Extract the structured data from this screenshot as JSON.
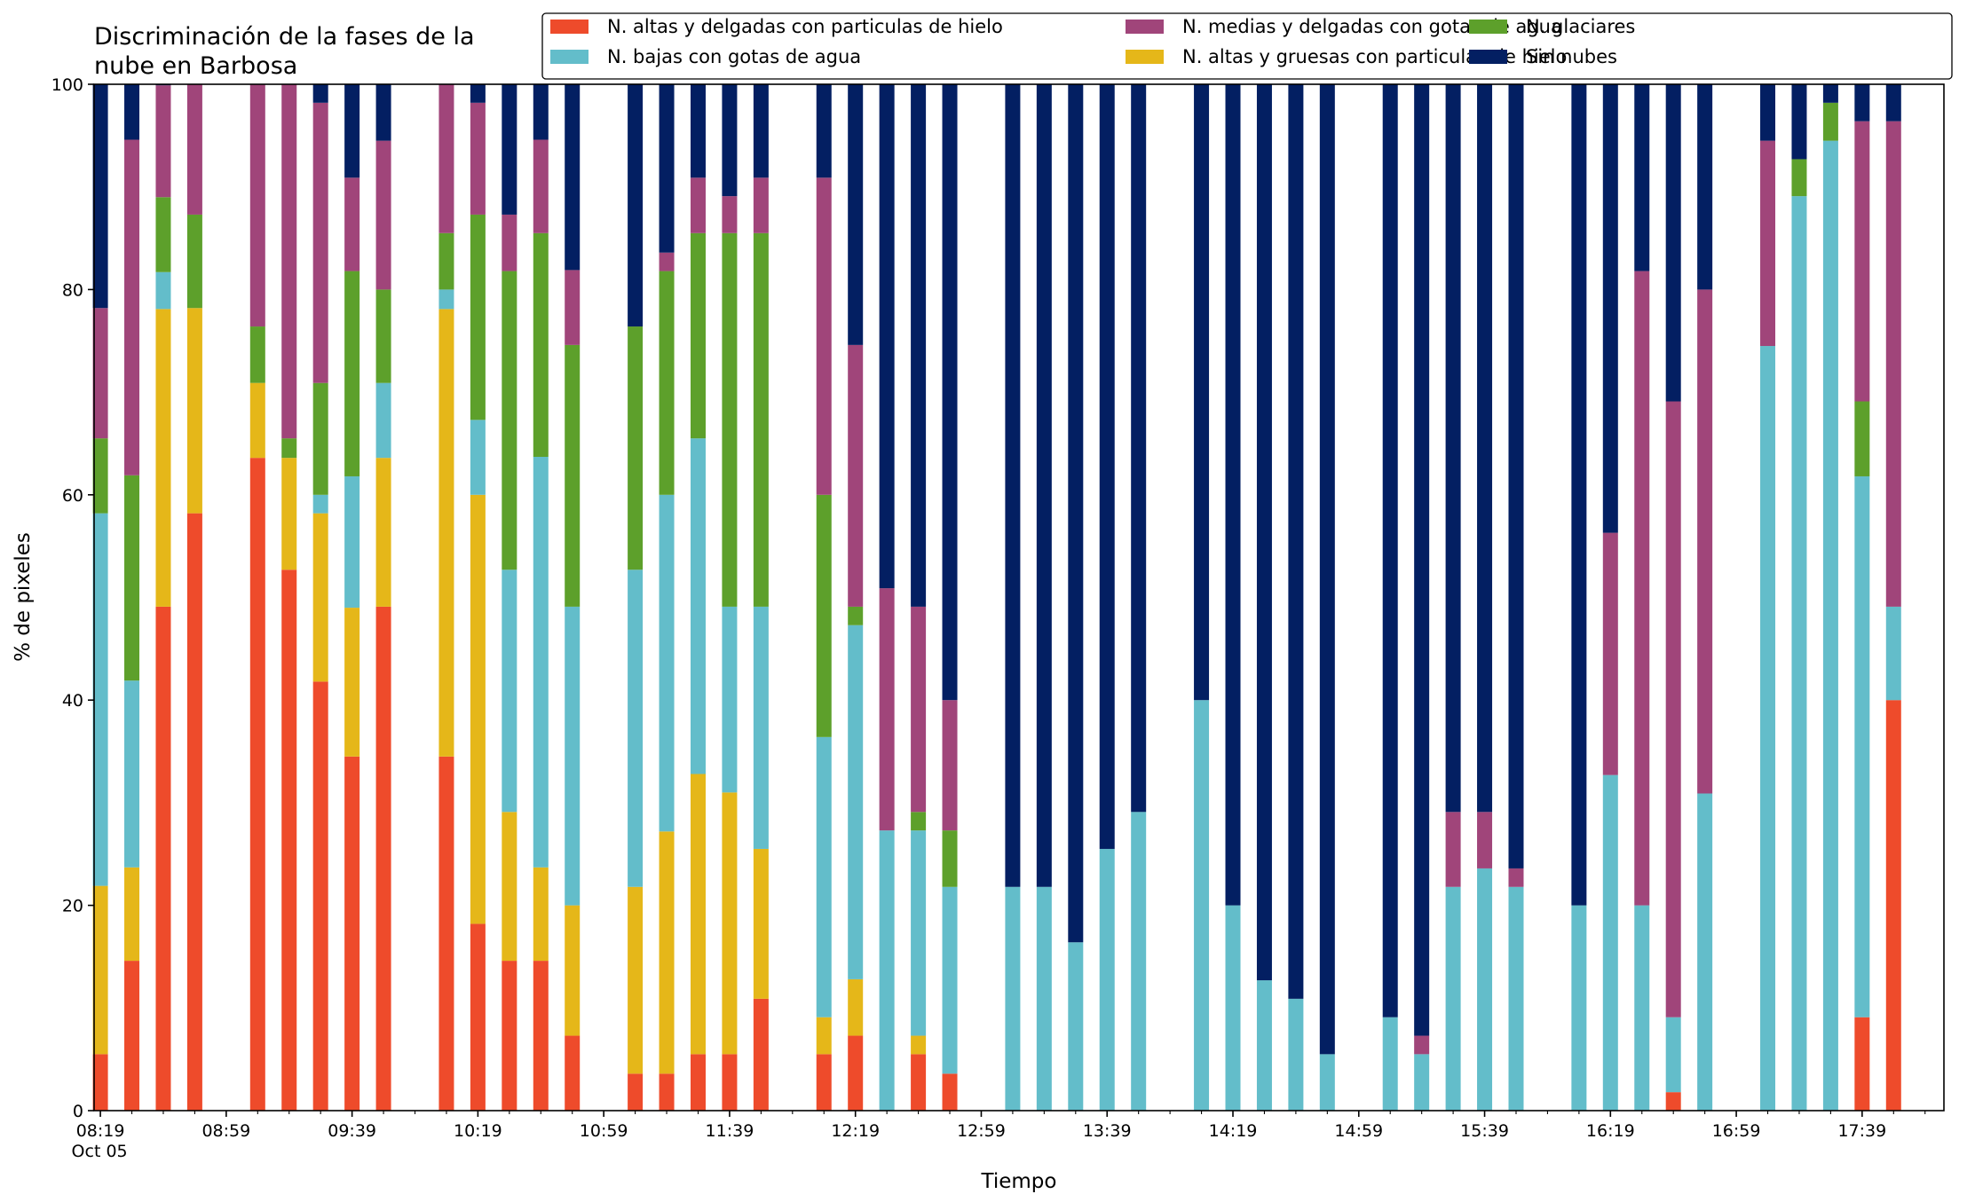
{
  "chart_data": {
    "type": "bar",
    "stacked": true,
    "title_lines": [
      "Discriminación de la fases de la",
      "nube en Barbosa"
    ],
    "xlabel": "Tiempo",
    "ylabel": "% de pixeles",
    "ylim": [
      0,
      100
    ],
    "y_ticks": [
      "0",
      "20",
      "40",
      "60",
      "80",
      "100"
    ],
    "x_tick_labels": [
      {
        "minute": 0,
        "label": "08:19",
        "sub": "Oct 05"
      },
      {
        "minute": 40,
        "label": "08:59"
      },
      {
        "minute": 80,
        "label": "09:39"
      },
      {
        "minute": 120,
        "label": "10:19"
      },
      {
        "minute": 160,
        "label": "10:59"
      },
      {
        "minute": 200,
        "label": "11:39"
      },
      {
        "minute": 240,
        "label": "12:19"
      },
      {
        "minute": 280,
        "label": "12:59"
      },
      {
        "minute": 320,
        "label": "13:39"
      },
      {
        "minute": 360,
        "label": "14:19"
      },
      {
        "minute": 400,
        "label": "14:59"
      },
      {
        "minute": 440,
        "label": "15:39"
      },
      {
        "minute": 480,
        "label": "16:19"
      },
      {
        "minute": 520,
        "label": "16:59"
      },
      {
        "minute": 560,
        "label": "17:39"
      }
    ],
    "x_range_minutes": [
      -2,
      586
    ],
    "legend_position": "top-right",
    "series": [
      {
        "name": "N. altas y delgadas con particulas de hielo",
        "color": "#EE4B2B"
      },
      {
        "name": "N. altas y gruesas con particulas de hielo",
        "color": "#E5B719"
      },
      {
        "name": "N. bajas con gotas de agua",
        "color": "#63BDCA"
      },
      {
        "name": "N. glaciares",
        "color": "#5DA02B"
      },
      {
        "name": "N. medias y delgadas con gotas de agua",
        "color": "#A0457A"
      },
      {
        "name": "Sin nubes",
        "color": "#031F62"
      }
    ],
    "legend_order": [
      0,
      2,
      4,
      1,
      3,
      5
    ],
    "bars": [
      {
        "time": "08:19",
        "values": [
          5.5,
          16.4,
          36.3,
          7.3,
          12.7,
          21.8
        ]
      },
      {
        "time": "08:29",
        "values": [
          14.6,
          9.1,
          18.2,
          20.0,
          32.7,
          5.4
        ]
      },
      {
        "time": "08:39",
        "values": [
          49.1,
          29.0,
          3.6,
          7.3,
          10.9,
          0.1
        ]
      },
      {
        "time": "08:49",
        "values": [
          58.2,
          20.0,
          0.0,
          9.1,
          12.7,
          0.0
        ]
      },
      {
        "time": "09:09",
        "values": [
          63.6,
          7.3,
          0.0,
          5.5,
          23.6,
          0.0
        ]
      },
      {
        "time": "09:19",
        "values": [
          52.7,
          10.9,
          0.0,
          1.9,
          34.5,
          0.0
        ]
      },
      {
        "time": "09:29",
        "values": [
          41.8,
          16.4,
          1.8,
          10.9,
          27.3,
          1.8
        ]
      },
      {
        "time": "09:39",
        "values": [
          34.5,
          14.5,
          12.8,
          20.0,
          9.1,
          9.1
        ]
      },
      {
        "time": "09:49",
        "values": [
          49.1,
          14.5,
          7.3,
          9.1,
          14.5,
          5.5
        ]
      },
      {
        "time": "10:09",
        "values": [
          34.5,
          43.6,
          1.9,
          5.5,
          14.5,
          0.0
        ]
      },
      {
        "time": "10:19",
        "values": [
          18.2,
          41.8,
          7.3,
          20.0,
          10.9,
          1.8
        ]
      },
      {
        "time": "10:29",
        "values": [
          14.6,
          14.5,
          23.6,
          29.1,
          5.5,
          12.7
        ]
      },
      {
        "time": "10:39",
        "values": [
          14.6,
          9.1,
          40.0,
          21.8,
          9.1,
          5.4
        ]
      },
      {
        "time": "10:49",
        "values": [
          7.3,
          12.7,
          29.1,
          25.5,
          7.3,
          18.1
        ]
      },
      {
        "time": "11:09",
        "values": [
          3.6,
          18.2,
          30.9,
          23.7,
          0.0,
          23.6
        ]
      },
      {
        "time": "11:19",
        "values": [
          3.6,
          23.6,
          32.8,
          21.8,
          1.8,
          16.4
        ]
      },
      {
        "time": "11:29",
        "values": [
          5.5,
          27.3,
          32.7,
          20.0,
          5.4,
          9.1
        ]
      },
      {
        "time": "11:39",
        "values": [
          5.5,
          25.5,
          18.1,
          36.4,
          3.6,
          10.9
        ]
      },
      {
        "time": "11:49",
        "values": [
          10.9,
          14.6,
          23.6,
          36.4,
          5.4,
          9.1
        ]
      },
      {
        "time": "12:09",
        "values": [
          5.5,
          3.6,
          27.3,
          23.6,
          30.9,
          9.1
        ]
      },
      {
        "time": "12:19",
        "values": [
          7.3,
          5.5,
          34.5,
          1.8,
          25.5,
          25.4
        ]
      },
      {
        "time": "12:29",
        "values": [
          0.0,
          0.0,
          27.3,
          0.0,
          23.6,
          49.1
        ]
      },
      {
        "time": "12:39",
        "values": [
          5.5,
          1.8,
          20.0,
          1.8,
          20.0,
          50.9
        ]
      },
      {
        "time": "12:49",
        "values": [
          3.6,
          0.0,
          18.2,
          5.5,
          12.7,
          60.0
        ]
      },
      {
        "time": "13:09",
        "values": [
          0.0,
          0.0,
          21.8,
          0.0,
          0.0,
          78.2
        ]
      },
      {
        "time": "13:19",
        "values": [
          0.0,
          0.0,
          21.8,
          0.0,
          0.0,
          78.2
        ]
      },
      {
        "time": "13:29",
        "values": [
          0.0,
          0.0,
          16.4,
          0.0,
          0.0,
          83.6
        ]
      },
      {
        "time": "13:39",
        "values": [
          0.0,
          0.0,
          25.5,
          0.0,
          0.0,
          74.5
        ]
      },
      {
        "time": "13:49",
        "values": [
          0.0,
          0.0,
          29.1,
          0.0,
          0.0,
          70.9
        ]
      },
      {
        "time": "14:09",
        "values": [
          0.0,
          0.0,
          40.0,
          0.0,
          0.0,
          60.0
        ]
      },
      {
        "time": "14:19",
        "values": [
          0.0,
          0.0,
          20.0,
          0.0,
          0.0,
          80.0
        ]
      },
      {
        "time": "14:29",
        "values": [
          0.0,
          0.0,
          12.7,
          0.0,
          0.0,
          87.3
        ]
      },
      {
        "time": "14:39",
        "values": [
          0.0,
          0.0,
          10.9,
          0.0,
          0.0,
          89.1
        ]
      },
      {
        "time": "14:49",
        "values": [
          0.0,
          0.0,
          5.5,
          0.0,
          0.0,
          94.5
        ]
      },
      {
        "time": "15:09",
        "values": [
          0.0,
          0.0,
          9.1,
          0.0,
          0.0,
          90.9
        ]
      },
      {
        "time": "15:19",
        "values": [
          0.0,
          0.0,
          5.5,
          0.0,
          1.8,
          92.7
        ]
      },
      {
        "time": "15:29",
        "values": [
          0.0,
          0.0,
          21.8,
          0.0,
          7.3,
          70.9
        ]
      },
      {
        "time": "15:39",
        "values": [
          0.0,
          0.0,
          23.6,
          0.0,
          5.5,
          70.9
        ]
      },
      {
        "time": "15:49",
        "values": [
          0.0,
          0.0,
          21.8,
          0.0,
          1.8,
          76.4
        ]
      },
      {
        "time": "16:09",
        "values": [
          0.0,
          0.0,
          20.0,
          0.0,
          0.0,
          80.0
        ]
      },
      {
        "time": "16:19",
        "values": [
          0.0,
          0.0,
          32.7,
          0.0,
          23.6,
          43.7
        ]
      },
      {
        "time": "16:29",
        "values": [
          0.0,
          0.0,
          20.0,
          0.0,
          61.8,
          18.2
        ]
      },
      {
        "time": "16:39",
        "values": [
          1.8,
          0.0,
          7.3,
          0.0,
          60.0,
          30.9
        ]
      },
      {
        "time": "16:49",
        "values": [
          0.0,
          0.0,
          30.9,
          0.0,
          49.1,
          20.0
        ]
      },
      {
        "time": "17:09",
        "values": [
          0.0,
          0.0,
          74.5,
          0.0,
          20.0,
          5.5
        ]
      },
      {
        "time": "17:19",
        "values": [
          0.0,
          0.0,
          89.1,
          3.6,
          0.0,
          7.3
        ]
      },
      {
        "time": "17:29",
        "values": [
          0.0,
          0.0,
          94.5,
          3.7,
          0.0,
          1.8
        ]
      },
      {
        "time": "17:39",
        "values": [
          9.1,
          0.0,
          52.7,
          7.3,
          27.3,
          3.6
        ]
      },
      {
        "time": "17:49",
        "values": [
          40.0,
          0.0,
          9.1,
          0.0,
          47.3,
          3.6
        ]
      }
    ]
  }
}
